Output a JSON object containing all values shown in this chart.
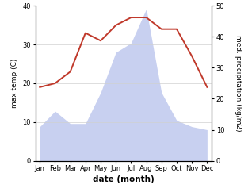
{
  "months": [
    "Jan",
    "Feb",
    "Mar",
    "Apr",
    "May",
    "Jun",
    "Jul",
    "Aug",
    "Sep",
    "Oct",
    "Nov",
    "Dec"
  ],
  "temperature": [
    19,
    20,
    23,
    33,
    31,
    35,
    37,
    37,
    34,
    34,
    27,
    19
  ],
  "precipitation": [
    11,
    16,
    12,
    12,
    22,
    35,
    38,
    49,
    22,
    13,
    11,
    10
  ],
  "temp_color": "#c0392b",
  "precip_fill_color": "#c8d0f0",
  "temp_ylim": [
    0,
    40
  ],
  "precip_ylim": [
    0,
    50
  ],
  "xlabel": "date (month)",
  "ylabel_left": "max temp (C)",
  "ylabel_right": "med. precipitation (kg/m2)",
  "bg_color": "#ffffff",
  "grid_color": "#d0d0d0",
  "temp_linewidth": 1.4,
  "tick_fontsize": 6.0,
  "label_fontsize": 6.5,
  "xlabel_fontsize": 7.5
}
